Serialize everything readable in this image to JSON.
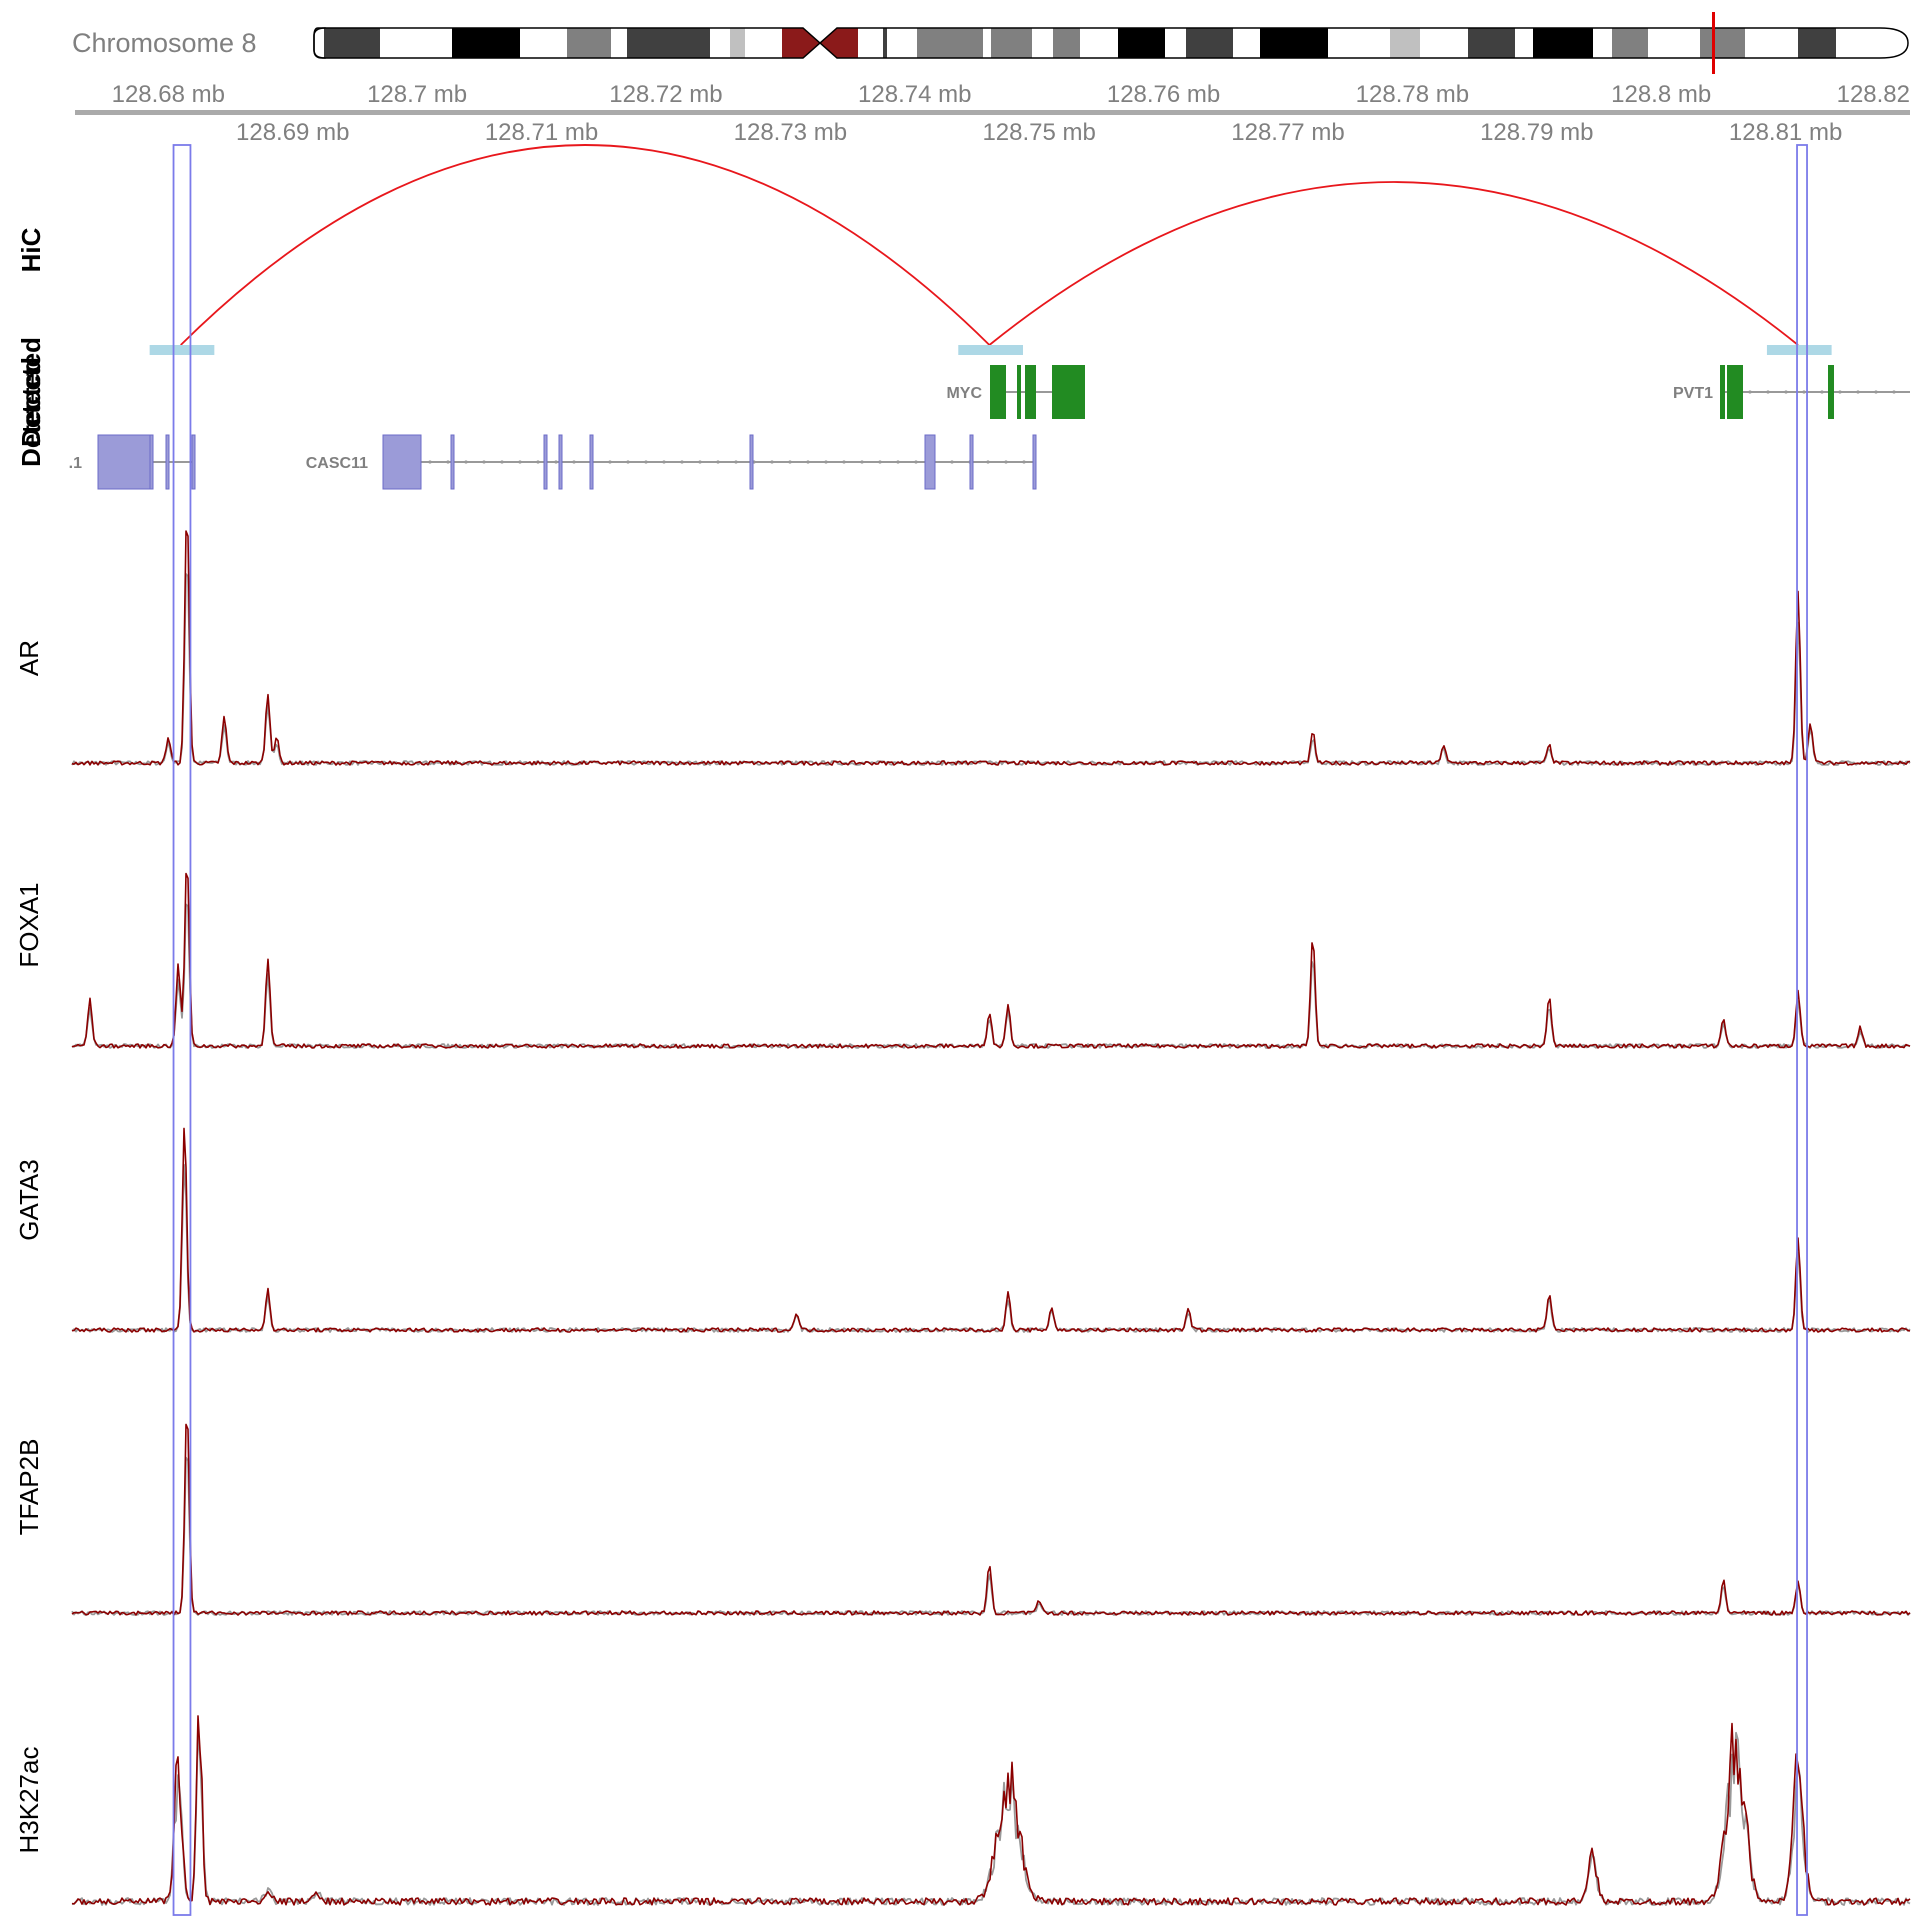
{
  "ideogram": {
    "chromosome_label": "Chromosome 8",
    "marker_color": "#e00000"
  },
  "axis": {
    "range_mb": [
      128.6725,
      128.82
    ],
    "top_ticks": [
      {
        "pos": 128.68,
        "label": "128.68 mb"
      },
      {
        "pos": 128.7,
        "label": "128.7 mb"
      },
      {
        "pos": 128.72,
        "label": "128.72 mb"
      },
      {
        "pos": 128.74,
        "label": "128.74 mb"
      },
      {
        "pos": 128.76,
        "label": "128.76 mb"
      },
      {
        "pos": 128.78,
        "label": "128.78 mb"
      },
      {
        "pos": 128.8,
        "label": "128.8 mb"
      },
      {
        "pos": 128.82,
        "label": "128.82"
      }
    ],
    "bottom_ticks": [
      {
        "pos": 128.69,
        "label": "128.69 mb"
      },
      {
        "pos": 128.71,
        "label": "128.71 mb"
      },
      {
        "pos": 128.73,
        "label": "128.73 mb"
      },
      {
        "pos": 128.75,
        "label": "128.75 mb"
      },
      {
        "pos": 128.77,
        "label": "128.77 mb"
      },
      {
        "pos": 128.79,
        "label": "128.79 mb"
      },
      {
        "pos": 128.81,
        "label": "128.81 mb"
      }
    ]
  },
  "tracks": {
    "hic_label": "HiC",
    "detected_label_1": "Detected",
    "detected_label_2": "Detected",
    "signal_labels": [
      "AR",
      "FOXA1",
      "GATA3",
      "TFAP2B",
      "H3K27ac"
    ]
  },
  "hic": {
    "arc_color": "#e8171c",
    "anchor_color": "#add8e6",
    "anchors_mb": [
      [
        128.6785,
        128.6837
      ],
      [
        128.7435,
        128.7487
      ],
      [
        128.8085,
        128.8137
      ]
    ],
    "loops": [
      {
        "from": 128.681,
        "to": 128.746
      },
      {
        "from": 128.746,
        "to": 128.811
      }
    ]
  },
  "genes": {
    "green_color": "#228b22",
    "blue_color": "#9b9bd8",
    "items": [
      {
        "label": "MYC",
        "strand_color": "green"
      },
      {
        "label": "PVT1",
        "strand_color": "green"
      },
      {
        "label": ".1",
        "strand_color": "blue"
      },
      {
        "label": "CASC11",
        "strand_color": "blue"
      }
    ]
  },
  "highlights_mb": [
    [
      128.6805,
      128.6817
    ],
    [
      128.811,
      128.8114
    ]
  ],
  "signal_colors": {
    "primary": "#8b0000",
    "secondary": "#999999"
  },
  "chart_data": {
    "type": "line",
    "x_units": "mb",
    "x_range": [
      128.6725,
      128.82
    ],
    "series": [
      {
        "name": "AR",
        "peaks": [
          {
            "x": 128.68,
            "y": 0.1
          },
          {
            "x": 128.6815,
            "y": 1.0
          },
          {
            "x": 128.6845,
            "y": 0.18
          },
          {
            "x": 128.688,
            "y": 0.27
          },
          {
            "x": 128.6887,
            "y": 0.1
          },
          {
            "x": 128.772,
            "y": 0.12
          },
          {
            "x": 128.7825,
            "y": 0.07
          },
          {
            "x": 128.791,
            "y": 0.07
          },
          {
            "x": 128.811,
            "y": 0.68
          },
          {
            "x": 128.812,
            "y": 0.16
          }
        ]
      },
      {
        "name": "FOXA1",
        "peaks": [
          {
            "x": 128.6737,
            "y": 0.2
          },
          {
            "x": 128.6808,
            "y": 0.35
          },
          {
            "x": 128.6815,
            "y": 0.82
          },
          {
            "x": 128.688,
            "y": 0.38
          },
          {
            "x": 128.746,
            "y": 0.15
          },
          {
            "x": 128.7475,
            "y": 0.18
          },
          {
            "x": 128.772,
            "y": 0.48
          },
          {
            "x": 128.791,
            "y": 0.21
          },
          {
            "x": 128.805,
            "y": 0.12
          },
          {
            "x": 128.811,
            "y": 0.24
          },
          {
            "x": 128.816,
            "y": 0.08
          }
        ]
      },
      {
        "name": "GATA3",
        "peaks": [
          {
            "x": 128.6813,
            "y": 0.9
          },
          {
            "x": 128.688,
            "y": 0.18
          },
          {
            "x": 128.7305,
            "y": 0.08
          },
          {
            "x": 128.7475,
            "y": 0.16
          },
          {
            "x": 128.751,
            "y": 0.1
          },
          {
            "x": 128.762,
            "y": 0.09
          },
          {
            "x": 128.791,
            "y": 0.16
          },
          {
            "x": 128.811,
            "y": 0.4
          }
        ]
      },
      {
        "name": "TFAP2B",
        "peaks": [
          {
            "x": 128.6815,
            "y": 0.86
          },
          {
            "x": 128.746,
            "y": 0.2
          },
          {
            "x": 128.75,
            "y": 0.05
          },
          {
            "x": 128.805,
            "y": 0.14
          },
          {
            "x": 128.811,
            "y": 0.14
          }
        ]
      },
      {
        "name": "H3K27ac",
        "regions": [
          {
            "center": 128.6808,
            "width": 0.001,
            "y": 0.7
          },
          {
            "center": 128.6825,
            "width": 0.0008,
            "y": 0.85
          },
          {
            "center": 128.7475,
            "width": 0.003,
            "y": 0.62
          },
          {
            "center": 128.7945,
            "width": 0.0012,
            "y": 0.22
          },
          {
            "center": 128.806,
            "width": 0.0025,
            "y": 0.8
          },
          {
            "center": 128.811,
            "width": 0.0015,
            "y": 0.62
          }
        ]
      }
    ]
  }
}
